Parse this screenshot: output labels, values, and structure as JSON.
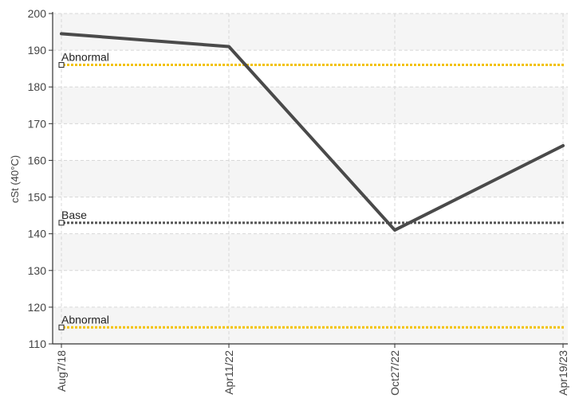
{
  "chart_data": {
    "type": "line",
    "ylabel": "cSt (40°C)",
    "ylim": [
      110,
      200
    ],
    "yticks": [
      110,
      120,
      130,
      140,
      150,
      160,
      170,
      180,
      190,
      200
    ],
    "categories": [
      "Aug7/18",
      "Apr11/22",
      "Oct27/22",
      "Apr19/23"
    ],
    "series": [
      {
        "values": [
          194.5,
          191.0,
          141.0,
          164.0
        ]
      }
    ],
    "reference_lines": [
      {
        "label": "Abnormal",
        "value": 186,
        "color": "#f2c200"
      },
      {
        "label": "Base",
        "value": 143,
        "color": "#555555"
      },
      {
        "label": "Abnormal",
        "value": 114.5,
        "color": "#f2c200"
      }
    ],
    "grid": true,
    "band_fill": "#f5f5f5",
    "line_color": "#4a4a4a"
  }
}
